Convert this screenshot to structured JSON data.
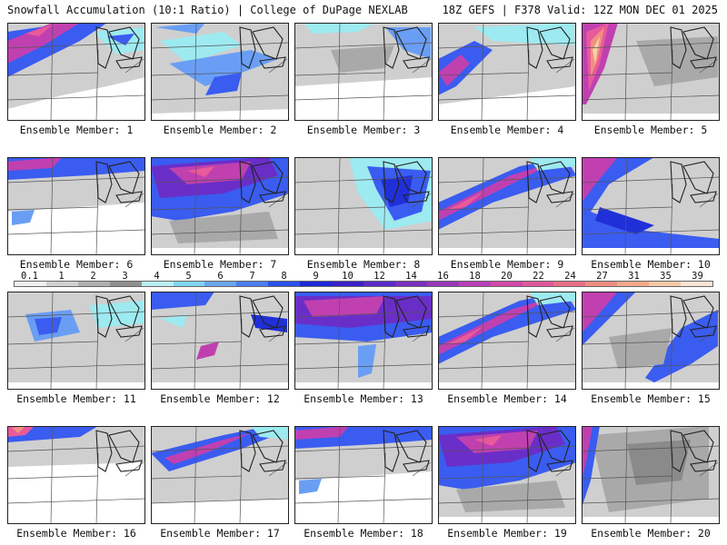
{
  "header": {
    "left": "Snowfall Accumulation (10:1 Ratio) | College of DuPage NEXLAB",
    "right": "18Z GEFS | F378 Valid: 12Z MON DEC 01 2025"
  },
  "member_label_prefix": "Ensemble Member: ",
  "members": [
    {
      "number": "1",
      "pattern": "nw-band-strong"
    },
    {
      "number": "2",
      "pattern": "scattered-blue"
    },
    {
      "number": "3",
      "pattern": "light-north"
    },
    {
      "number": "4",
      "pattern": "west-band"
    },
    {
      "number": "5",
      "pattern": "heavy-northwest"
    },
    {
      "number": "6",
      "pattern": "north-strip"
    },
    {
      "number": "7",
      "pattern": "broad-north-heavy"
    },
    {
      "number": "8",
      "pattern": "great-lakes-blue"
    },
    {
      "number": "9",
      "pattern": "diagonal-band"
    },
    {
      "number": "10",
      "pattern": "northwest-arc"
    },
    {
      "number": "11",
      "pattern": "central-blue"
    },
    {
      "number": "12",
      "pattern": "lakes-streak"
    },
    {
      "number": "13",
      "pattern": "broad-north-magenta"
    },
    {
      "number": "14",
      "pattern": "diagonal-band"
    },
    {
      "number": "15",
      "pattern": "northwest-edge"
    },
    {
      "number": "16",
      "pattern": "north-strip-light"
    },
    {
      "number": "17",
      "pattern": "north-blue-band"
    },
    {
      "number": "18",
      "pattern": "north-strip"
    },
    {
      "number": "19",
      "pattern": "broad-north-heavy"
    },
    {
      "number": "20",
      "pattern": "northwest-edge-gray"
    }
  ],
  "colorbar": {
    "labels": [
      "0.1",
      "1",
      "2",
      "3",
      "4",
      "5",
      "6",
      "7",
      "8",
      "9",
      "10",
      "12",
      "14",
      "16",
      "18",
      "20",
      "22",
      "24",
      "27",
      "31",
      "35",
      "39"
    ],
    "colors": [
      "#f0f0f0",
      "#d0d0d0",
      "#b0b0b0",
      "#909090",
      "#b8eef0",
      "#7fd4f0",
      "#6aa6f0",
      "#4a7ef0",
      "#2a50e8",
      "#1c28d8",
      "#3a20c8",
      "#5a28c8",
      "#7a30c0",
      "#9838b8",
      "#b840b8",
      "#d048a8",
      "#e05898",
      "#e87088",
      "#f08c80",
      "#f4a88a",
      "#f8c8a8",
      "#fae4d4"
    ]
  },
  "colors": {
    "gray_light": "#cfcfcf",
    "gray_mid": "#a9a9a9",
    "gray_dark": "#8a8a8a",
    "cyan": "#9deaf0",
    "blue_light": "#6a9ef5",
    "blue": "#3a5cf0",
    "blue_dark": "#2030d8",
    "purple": "#6a2ec8",
    "magenta": "#c040b0",
    "pink": "#e85a9a",
    "salmon": "#f09080",
    "peach": "#f8d0a8",
    "map_line": "#222222",
    "state_line": "#555555"
  }
}
